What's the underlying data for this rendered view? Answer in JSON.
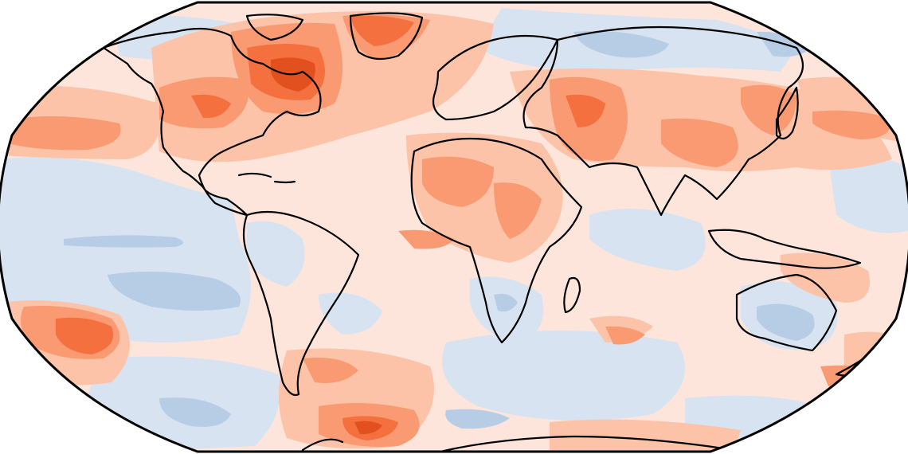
{
  "map": {
    "projection": "robinson",
    "variable": "temperature-anomaly",
    "levels": {
      "strong_cool": "#8fb0d6",
      "moderate_cool": "#b7cde6",
      "weak_cool": "#d7e3f1",
      "neutral": "#fde5dc",
      "weak_warm": "#fcc3a8",
      "moderate_warm": "#f99a72",
      "strong_warm": "#f4703f",
      "extreme_warm": "#e2501f"
    },
    "coastline_color": "#000000",
    "outside_color": "#ffffff"
  }
}
